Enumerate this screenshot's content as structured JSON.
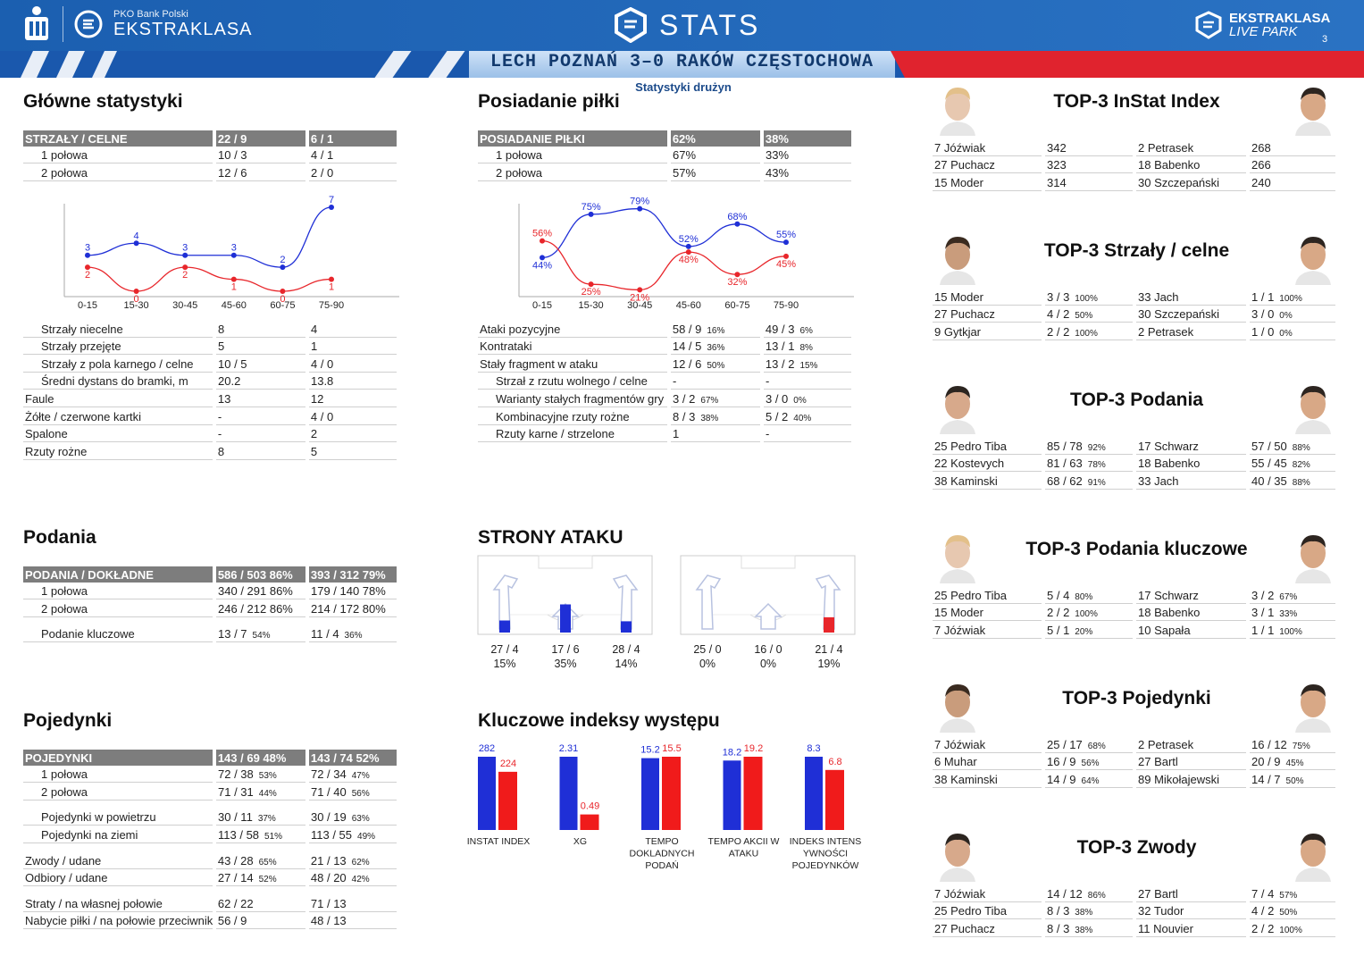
{
  "header": {
    "bank": "PKO Bank Polski",
    "league": "EKSTRAKLASA",
    "stats": "STATS",
    "brand1": "EKSTRAKLASA",
    "brand2": "LIVE PARK",
    "page": "3",
    "match": "LECH POZNAŃ 3–0 RAKÓW CZĘSTOCHOWA",
    "subtitle": "Statystyki drużyn"
  },
  "sections": {
    "main": "Główne statystyki",
    "possession": "Posiadanie piłki",
    "passes": "Podania",
    "attack": "STRONY ATAKU",
    "duels": "Pojedynki",
    "indexes": "Kluczowe indeksy występu"
  },
  "main_stats": {
    "head": [
      "STRZAŁY / CELNE",
      "22 / 9",
      "6 / 1"
    ],
    "halves": [
      [
        "1 połowa",
        "10 / 3",
        "4 / 1"
      ],
      [
        "2 połowa",
        "12 / 6",
        "2 / 0"
      ]
    ],
    "rows": [
      [
        "Strzały niecelne",
        "8",
        "4",
        true
      ],
      [
        "Strzały przejęte",
        "5",
        "1",
        true
      ],
      [
        "Strzały z pola karnego / celne",
        "10 / 5",
        "4 / 0",
        true
      ],
      [
        "Średni dystans do bramki, m",
        "20.2",
        "13.8",
        true
      ],
      [
        "Faule",
        "13",
        "12",
        false
      ],
      [
        "Żółte / czerwone kartki",
        "-",
        "4 / 0",
        false
      ],
      [
        "Spalone",
        "-",
        "2",
        false
      ],
      [
        "Rzuty rożne",
        "8",
        "5",
        false
      ]
    ]
  },
  "shots_chart": {
    "type": "line",
    "categories": [
      "0-15",
      "15-30",
      "30-45",
      "45-60",
      "60-75",
      "75-90"
    ],
    "series": [
      {
        "values": [
          3,
          4,
          3,
          3,
          2,
          7
        ],
        "color": "#1f2fd6"
      },
      {
        "values": [
          2,
          0,
          2,
          1,
          0,
          1
        ],
        "color": "#e8262b"
      }
    ],
    "ylim": [
      0,
      7
    ]
  },
  "possession": {
    "head": [
      "POSIADANIE PIŁKI",
      "62%",
      "38%"
    ],
    "halves": [
      [
        "1 połowa",
        "67%",
        "33%"
      ],
      [
        "2 połowa",
        "57%",
        "43%"
      ]
    ],
    "rows": [
      [
        "Ataki pozycyjne",
        "58 / 9",
        "16%",
        "49 / 3",
        "6%",
        false
      ],
      [
        "Kontrataki",
        "14 / 5",
        "36%",
        "13 / 1",
        "8%",
        false
      ],
      [
        "Stały fragment w ataku",
        "12 / 6",
        "50%",
        "13 / 2",
        "15%",
        false
      ],
      [
        "Strzał z rzutu wolnego / celne",
        "-",
        "",
        "-",
        "",
        true
      ],
      [
        "Warianty stałych fragmentów gry",
        "3 / 2",
        "67%",
        "3 / 0",
        "0%",
        true
      ],
      [
        "Kombinacyjne rzuty rożne",
        "8 / 3",
        "38%",
        "5 / 2",
        "40%",
        true
      ],
      [
        "Rzuty karne /  strzelone",
        "1",
        "",
        "-",
        "",
        true
      ]
    ]
  },
  "possession_chart": {
    "type": "line",
    "categories": [
      "0-15",
      "15-30",
      "30-45",
      "45-60",
      "60-75",
      "75-90"
    ],
    "series": [
      {
        "values": [
          44,
          75,
          79,
          52,
          68,
          55
        ],
        "color": "#1f2fd6"
      },
      {
        "values": [
          56,
          25,
          21,
          48,
          32,
          45
        ],
        "color": "#e8262b"
      }
    ],
    "ylim": [
      20,
      80
    ]
  },
  "passes": {
    "head": [
      "PODANIA / DOKŁADNE",
      "586 / 503 86%",
      "393 / 312 79%"
    ],
    "rows": [
      [
        "1 połowa",
        "340 / 291 86%",
        "179 / 140 78%"
      ],
      [
        "2 połowa",
        "246 / 212 86%",
        "214 / 172 80%"
      ]
    ],
    "key": [
      "Podanie kluczowe",
      "13 / 7",
      "54%",
      "11 / 4",
      "36%"
    ]
  },
  "attack_sides": {
    "home": [
      {
        "v": "27 / 4",
        "p": "15%",
        "pct": 15
      },
      {
        "v": "17 / 6",
        "p": "35%",
        "pct": 35
      },
      {
        "v": "28 / 4",
        "p": "14%",
        "pct": 14
      }
    ],
    "away": [
      {
        "v": "25 / 0",
        "p": "0%",
        "pct": 0
      },
      {
        "v": "16 / 0",
        "p": "0%",
        "pct": 0
      },
      {
        "v": "21 / 4",
        "p": "19%",
        "pct": 19
      }
    ]
  },
  "duels": {
    "head": [
      "POJEDYNKI",
      "143 / 69 48%",
      "143 / 74 52%"
    ],
    "groups": [
      [
        [
          "1 połowa",
          "72 / 38",
          "53%",
          "72 / 34",
          "47%",
          true
        ],
        [
          "2 połowa",
          "71 / 31",
          "44%",
          "71 / 40",
          "56%",
          true
        ]
      ],
      [
        [
          "Pojedynki w powietrzu",
          "30 / 11",
          "37%",
          "30 / 19",
          "63%",
          true
        ],
        [
          "Pojedynki na ziemi",
          "113 / 58",
          "51%",
          "113 / 55",
          "49%",
          true
        ]
      ],
      [
        [
          "Zwody / udane",
          "43 / 28",
          "65%",
          "21 / 13",
          "62%",
          false
        ],
        [
          "Odbiory / udane",
          "27 / 14",
          "52%",
          "48 / 20",
          "42%",
          false
        ]
      ],
      [
        [
          "Straty / na własnej połowie",
          "62 / 22",
          "",
          "71 / 13",
          "",
          false
        ],
        [
          "Nabycie piłki / na połowie przeciwnika",
          "56 / 9",
          "",
          "48 / 13",
          "",
          false
        ]
      ]
    ]
  },
  "index_chart": {
    "type": "bar",
    "groups": [
      {
        "label": "INSTAT INDEX",
        "home": "282",
        "away": "224",
        "h": 282,
        "a": 224,
        "max": 282
      },
      {
        "label": "XG",
        "home": "2.31",
        "away": "0.49",
        "h": 2.31,
        "a": 0.49,
        "max": 2.31
      },
      {
        "label": "TEMPO DOKLADNYCH PODAŃ",
        "home": "15.2",
        "away": "15.5",
        "h": 15.2,
        "a": 15.5,
        "max": 15.5
      },
      {
        "label": "TEMPO AKCII W ATAKU",
        "home": "18.2",
        "away": "19.2",
        "h": 18.2,
        "a": 19.2,
        "max": 19.2
      },
      {
        "label": "INDEKS INTENS YWNOŚCI POJEDYNKÓW",
        "home": "8.3",
        "away": "6.8",
        "h": 8.3,
        "a": 6.8,
        "max": 8.3
      }
    ]
  },
  "tops": [
    {
      "title": "TOP-3 InStat Index",
      "home": [
        [
          "7  Jóźwiak",
          "342",
          ""
        ],
        [
          "27 Puchacz",
          "323",
          ""
        ],
        [
          "15 Moder",
          "314",
          ""
        ]
      ],
      "away": [
        [
          "2  Petrasek",
          "268",
          ""
        ],
        [
          "18 Babenko",
          "266",
          ""
        ],
        [
          "30 Szczepański",
          "240",
          ""
        ]
      ]
    },
    {
      "title": "TOP-3 Strzały / celne",
      "home": [
        [
          "15 Moder",
          "3 / 3",
          "100%"
        ],
        [
          "27 Puchacz",
          "4 / 2",
          "50%"
        ],
        [
          "9  Gytkjar",
          "2 / 2",
          "100%"
        ]
      ],
      "away": [
        [
          "33 Jach",
          "1 / 1",
          "100%"
        ],
        [
          "30 Szczepański",
          "3 / 0",
          "0%"
        ],
        [
          "2  Petrasek",
          "1 / 0",
          "0%"
        ]
      ]
    },
    {
      "title": "TOP-3 Podania",
      "home": [
        [
          "25 Pedro Tiba",
          "85 / 78",
          "92%"
        ],
        [
          "22 Kostevych",
          "81 / 63",
          "78%"
        ],
        [
          "38 Kaminski",
          "68 / 62",
          "91%"
        ]
      ],
      "away": [
        [
          "17 Schwarz",
          "57 / 50",
          "88%"
        ],
        [
          "18 Babenko",
          "55 / 45",
          "82%"
        ],
        [
          "33 Jach",
          "40 / 35",
          "88%"
        ]
      ]
    },
    {
      "title": "TOP-3 Podania kluczowe",
      "home": [
        [
          "25 Pedro Tiba",
          "5 / 4",
          "80%"
        ],
        [
          "15 Moder",
          "2 / 2",
          "100%"
        ],
        [
          "7  Jóźwiak",
          "5 / 1",
          "20%"
        ]
      ],
      "away": [
        [
          "17 Schwarz",
          "3 / 2",
          "67%"
        ],
        [
          "18 Babenko",
          "3 / 1",
          "33%"
        ],
        [
          "10 Sapała",
          "1 / 1",
          "100%"
        ]
      ]
    },
    {
      "title": "TOP-3 Pojedynki",
      "home": [
        [
          "7  Jóźwiak",
          "25 / 17",
          "68%"
        ],
        [
          "6  Muhar",
          "16 / 9",
          "56%"
        ],
        [
          "38 Kaminski",
          "14 / 9",
          "64%"
        ]
      ],
      "away": [
        [
          "2  Petrasek",
          "16 / 12",
          "75%"
        ],
        [
          "27 Bartl",
          "20 / 9",
          "45%"
        ],
        [
          "89 Mikołajewski",
          "14 / 7",
          "50%"
        ]
      ]
    },
    {
      "title": "TOP-3 Zwody",
      "home": [
        [
          "7  Jóźwiak",
          "14 / 12",
          "86%"
        ],
        [
          "25 Pedro Tiba",
          "8 / 3",
          "38%"
        ],
        [
          "27 Puchacz",
          "8 / 3",
          "38%"
        ]
      ],
      "away": [
        [
          "27 Bartl",
          "7 / 4",
          "57%"
        ],
        [
          "32 Tudor",
          "4 / 2",
          "50%"
        ],
        [
          "11 Nouvier",
          "2 / 2",
          "100%"
        ]
      ]
    }
  ]
}
